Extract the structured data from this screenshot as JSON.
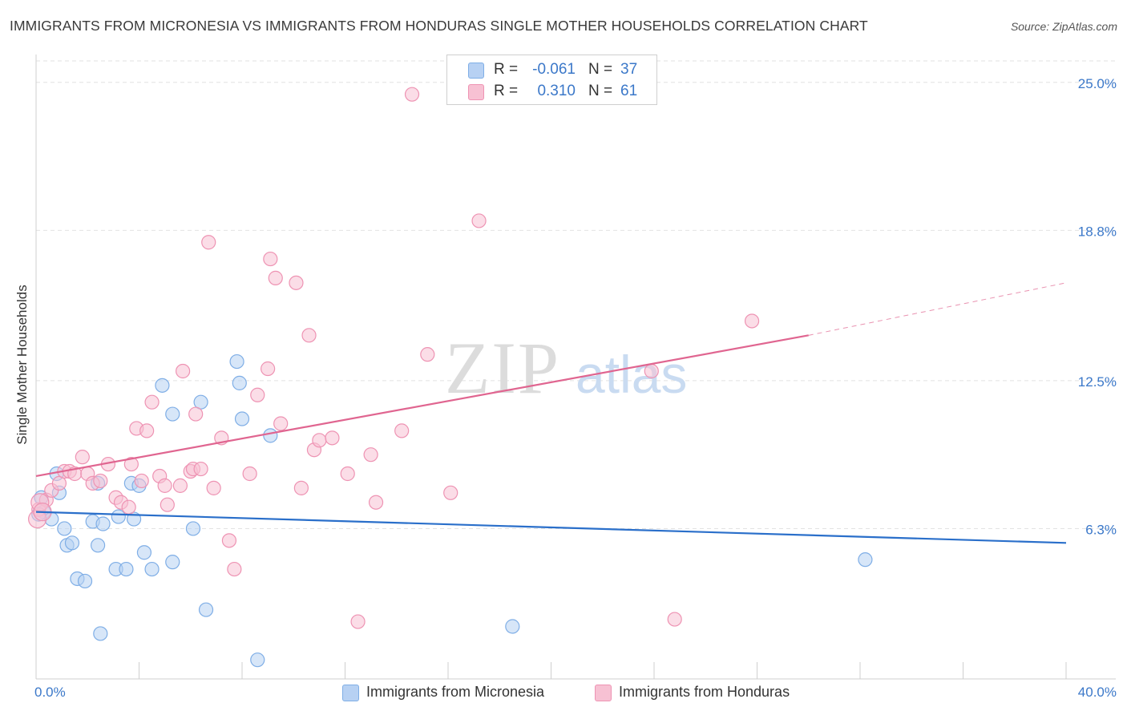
{
  "title": "IMMIGRANTS FROM MICRONESIA VS IMMIGRANTS FROM HONDURAS SINGLE MOTHER HOUSEHOLDS CORRELATION CHART",
  "source": "Source: ZipAtlas.com",
  "watermark": {
    "zip": "ZIP",
    "atlas": "atlas"
  },
  "stats": {
    "micronesia": {
      "r_label": "R =",
      "r": "-0.061",
      "n_label": "N =",
      "n": "37"
    },
    "honduras": {
      "r_label": "R =",
      "r": "0.310",
      "n_label": "N =",
      "n": "61"
    }
  },
  "legend": {
    "micronesia": "Immigrants from Micronesia",
    "honduras": "Immigrants from Honduras"
  },
  "colors": {
    "micronesia_fill": "#b7d1f3",
    "micronesia_stroke": "#7faee6",
    "micronesia_line": "#2a6fca",
    "honduras_fill": "#f7c1d3",
    "honduras_stroke": "#ee93b3",
    "honduras_line": "#e06590",
    "tick_label": "#3b78c9",
    "grid": "#e2e2e2"
  },
  "chart_data": {
    "type": "scatter",
    "title": "IMMIGRANTS FROM MICRONESIA VS IMMIGRANTS FROM HONDURAS SINGLE MOTHER HOUSEHOLDS CORRELATION CHART",
    "xlabel": "",
    "ylabel": "Single Mother Households",
    "xlim": [
      0,
      40
    ],
    "ylim": [
      0,
      25.9
    ],
    "x_tick_labels": [
      {
        "value": 0,
        "label": "0.0%"
      },
      {
        "value": 40,
        "label": "40.0%"
      }
    ],
    "y_tick_labels": [
      {
        "value": 6.3,
        "label": "6.3%"
      },
      {
        "value": 12.5,
        "label": "12.5%"
      },
      {
        "value": 18.8,
        "label": "18.8%"
      },
      {
        "value": 25.0,
        "label": "25.0%"
      }
    ],
    "grid": true,
    "legend_position": "bottom-center",
    "series": [
      {
        "name": "Immigrants from Micronesia",
        "points": [
          [
            0.2,
            7.6
          ],
          [
            0.3,
            7.0
          ],
          [
            0.6,
            6.7
          ],
          [
            0.8,
            8.6
          ],
          [
            0.9,
            7.8
          ],
          [
            1.1,
            6.3
          ],
          [
            1.2,
            5.6
          ],
          [
            1.4,
            5.7
          ],
          [
            1.6,
            4.2
          ],
          [
            1.9,
            4.1
          ],
          [
            2.4,
            8.2
          ],
          [
            2.2,
            6.6
          ],
          [
            2.4,
            5.6
          ],
          [
            2.6,
            6.5
          ],
          [
            2.5,
            1.9
          ],
          [
            3.1,
            4.6
          ],
          [
            3.2,
            6.8
          ],
          [
            3.5,
            4.6
          ],
          [
            3.7,
            8.2
          ],
          [
            3.8,
            6.7
          ],
          [
            4.0,
            8.1
          ],
          [
            4.2,
            5.3
          ],
          [
            4.5,
            4.6
          ],
          [
            4.9,
            12.3
          ],
          [
            5.3,
            11.1
          ],
          [
            5.3,
            4.9
          ],
          [
            6.1,
            6.3
          ],
          [
            6.4,
            11.6
          ],
          [
            6.6,
            2.9
          ],
          [
            7.8,
            13.3
          ],
          [
            7.9,
            12.4
          ],
          [
            8.0,
            10.9
          ],
          [
            8.6,
            0.8
          ],
          [
            9.1,
            10.2
          ],
          [
            18.5,
            2.2
          ],
          [
            32.2,
            5.0
          ],
          [
            0.1,
            6.9
          ]
        ],
        "trend": {
          "x": [
            0,
            40
          ],
          "y": [
            7.0,
            5.7
          ]
        }
      },
      {
        "name": "Immigrants from Honduras",
        "points": [
          [
            0.1,
            7.1
          ],
          [
            0.4,
            7.5
          ],
          [
            0.6,
            7.9
          ],
          [
            0.9,
            8.2
          ],
          [
            1.1,
            8.7
          ],
          [
            1.3,
            8.7
          ],
          [
            1.5,
            8.6
          ],
          [
            1.8,
            9.3
          ],
          [
            2.0,
            8.6
          ],
          [
            2.2,
            8.2
          ],
          [
            2.5,
            8.3
          ],
          [
            2.8,
            9.0
          ],
          [
            3.1,
            7.6
          ],
          [
            3.3,
            7.4
          ],
          [
            3.6,
            7.2
          ],
          [
            3.7,
            9.0
          ],
          [
            3.9,
            10.5
          ],
          [
            4.1,
            8.3
          ],
          [
            4.3,
            10.4
          ],
          [
            4.5,
            11.6
          ],
          [
            4.8,
            8.5
          ],
          [
            5.0,
            8.1
          ],
          [
            5.1,
            7.3
          ],
          [
            5.6,
            8.1
          ],
          [
            5.7,
            12.9
          ],
          [
            6.0,
            8.7
          ],
          [
            6.1,
            8.8
          ],
          [
            6.2,
            11.1
          ],
          [
            6.4,
            8.8
          ],
          [
            6.7,
            18.3
          ],
          [
            6.9,
            8.0
          ],
          [
            7.2,
            10.1
          ],
          [
            7.5,
            5.8
          ],
          [
            7.7,
            4.6
          ],
          [
            8.3,
            8.6
          ],
          [
            8.6,
            11.9
          ],
          [
            9.0,
            13.0
          ],
          [
            9.1,
            17.6
          ],
          [
            9.3,
            16.8
          ],
          [
            9.5,
            10.7
          ],
          [
            10.1,
            16.6
          ],
          [
            10.3,
            8.0
          ],
          [
            10.6,
            14.4
          ],
          [
            10.8,
            9.6
          ],
          [
            11.0,
            10.0
          ],
          [
            11.5,
            10.1
          ],
          [
            12.1,
            8.6
          ],
          [
            12.5,
            2.4
          ],
          [
            13.0,
            9.4
          ],
          [
            13.2,
            7.4
          ],
          [
            14.2,
            10.4
          ],
          [
            14.6,
            24.5
          ],
          [
            15.2,
            13.6
          ],
          [
            16.1,
            7.8
          ],
          [
            17.2,
            19.2
          ],
          [
            23.9,
            12.9
          ],
          [
            24.8,
            2.5
          ],
          [
            27.8,
            15.0
          ],
          [
            0.05,
            6.7
          ],
          [
            0.15,
            7.4
          ],
          [
            0.25,
            7.0
          ]
        ],
        "trend_solid": {
          "x": [
            0,
            30
          ],
          "y": [
            8.5,
            14.4
          ]
        },
        "trend_dashed": {
          "x": [
            30,
            40
          ],
          "y": [
            14.4,
            16.6
          ]
        }
      }
    ]
  }
}
